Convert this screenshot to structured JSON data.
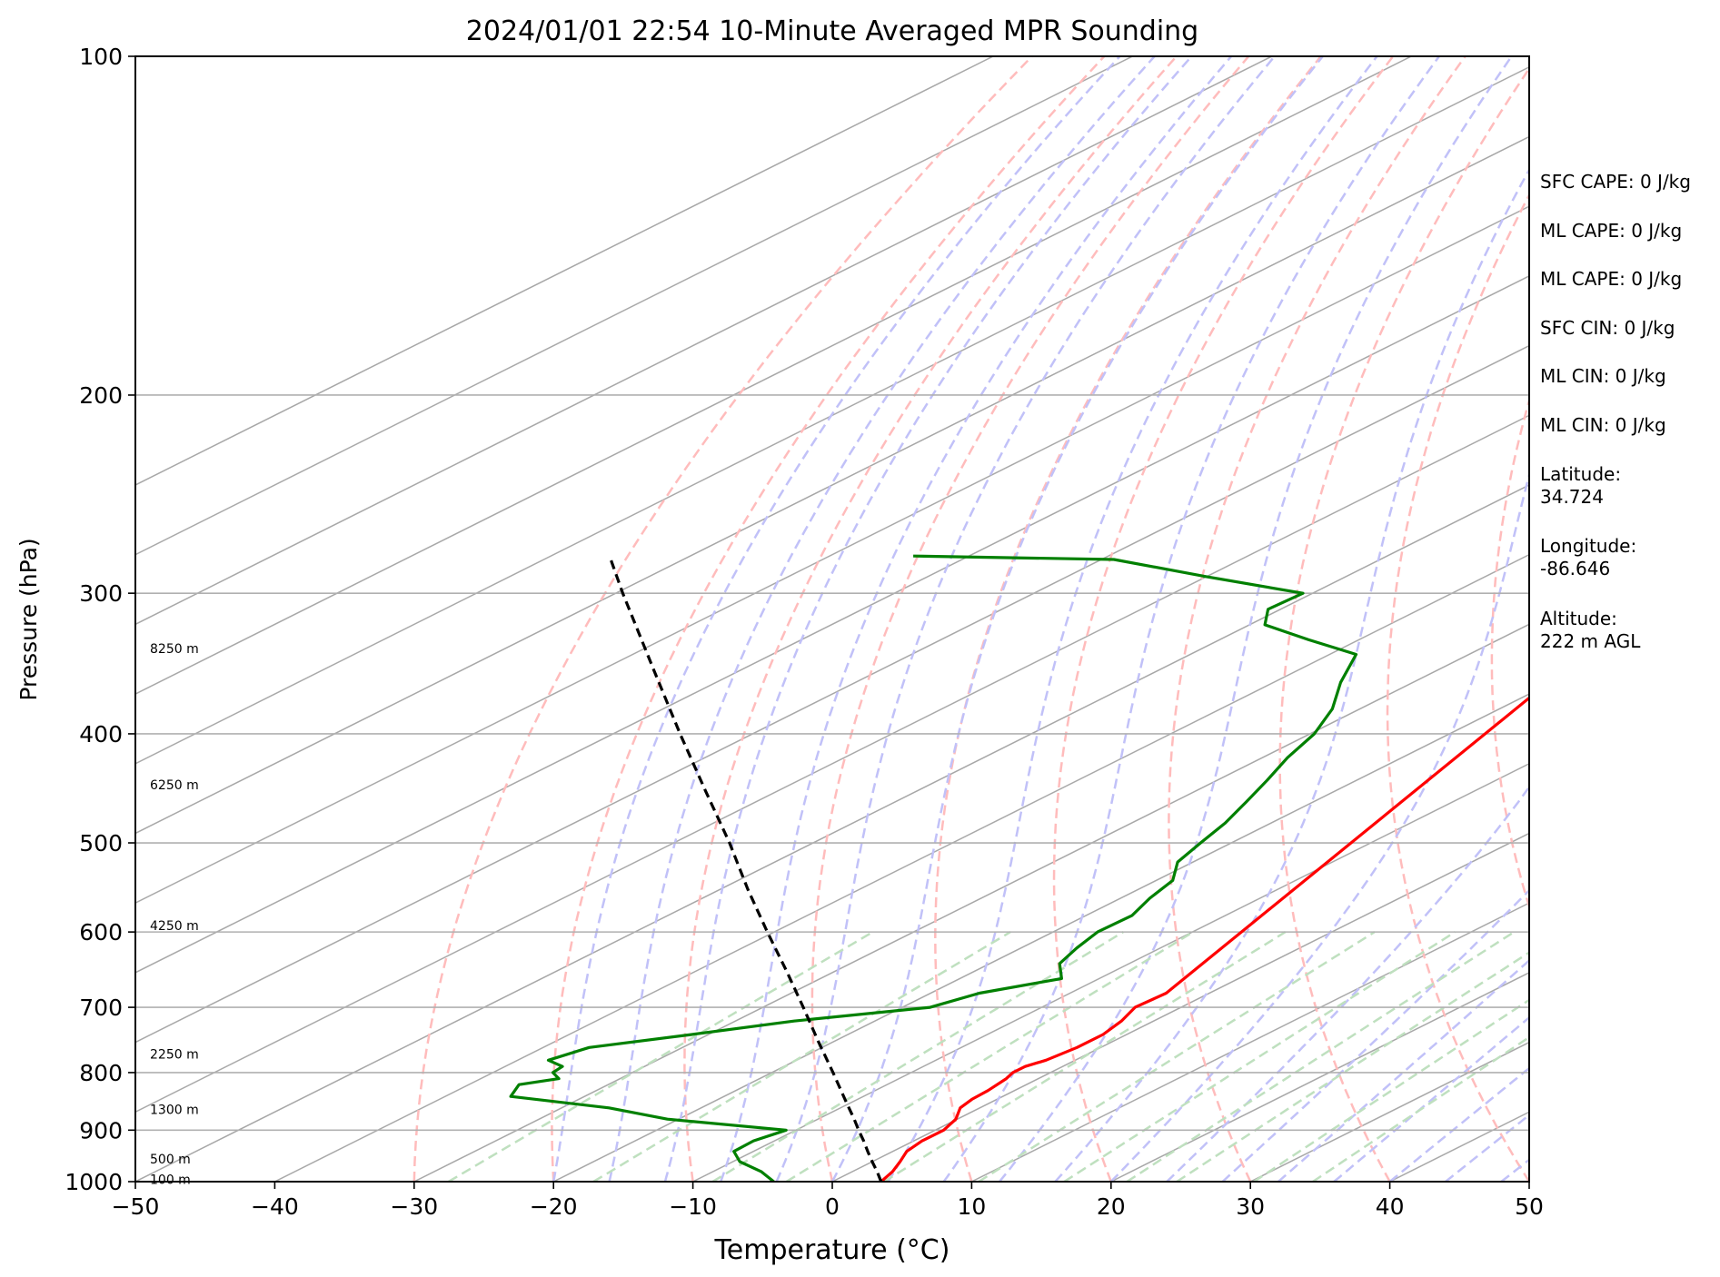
{
  "chart_data": {
    "type": "skew-t log-p sounding",
    "title": "2024/01/01 22:54 10-Minute Averaged MPR Sounding",
    "xlabel": "Temperature (°C)",
    "ylabel": "Pressure (hPa)",
    "xlim": [
      -50,
      50
    ],
    "ylim": [
      1000,
      100
    ],
    "y_scale": "log",
    "grid": true,
    "x_ticks": [
      -50,
      -40,
      -30,
      -20,
      -10,
      0,
      10,
      20,
      30,
      40,
      50
    ],
    "x_tick_labels": [
      "−50",
      "−40",
      "−30",
      "−20",
      "−10",
      "0",
      "10",
      "20",
      "30",
      "40",
      "50"
    ],
    "y_ticks": [
      1000,
      900,
      800,
      700,
      600,
      500,
      400,
      300,
      200,
      100
    ],
    "y_tick_labels": [
      "1000",
      "900",
      "800",
      "700",
      "600",
      "500",
      "400",
      "300",
      "200",
      "100"
    ],
    "height_labels": [
      {
        "pressure": 995,
        "label": "100 m"
      },
      {
        "pressure": 955,
        "label": "500 m"
      },
      {
        "pressure": 863,
        "label": "1300 m"
      },
      {
        "pressure": 770,
        "label": "2250 m"
      },
      {
        "pressure": 592,
        "label": "4250 m"
      },
      {
        "pressure": 444,
        "label": "6250 m"
      },
      {
        "pressure": 336,
        "label": "8250 m"
      }
    ],
    "series": [
      {
        "role": "temperature",
        "color": "#ff0000",
        "pressure": [
          1000,
          980,
          960,
          940,
          920,
          900,
          880,
          860,
          845,
          830,
          810,
          800,
          790,
          780,
          760,
          740,
          720,
          700,
          680,
          660,
          360,
          340,
          320,
          300,
          280,
          260,
          250
        ],
        "values": [
          3.5,
          2.9,
          2.0,
          1.0,
          0.6,
          0.6,
          -0.1,
          -1.4,
          -1.8,
          -1.9,
          -2.3,
          -2.7,
          -2.7,
          -2.1,
          -1.7,
          -1.7,
          -2.3,
          -3.3,
          -3.1,
          -3.9,
          -20.3,
          -21.8,
          -22.6,
          -22.9,
          -24.6,
          -25.4,
          -26.6
        ]
      },
      {
        "role": "dewpoint",
        "color": "#008000",
        "pressure": [
          1000,
          980,
          960,
          940,
          920,
          900,
          880,
          860,
          840,
          820,
          810,
          800,
          790,
          780,
          760,
          740,
          720,
          700,
          680,
          660,
          640,
          620,
          600,
          580,
          560,
          540,
          520,
          500,
          480,
          460,
          440,
          420,
          400,
          380,
          360,
          340,
          330,
          320,
          310,
          300,
          290,
          280,
          278
        ],
        "values": [
          -4.2,
          -6.5,
          -9.5,
          -11.4,
          -11.5,
          -10.7,
          -20.8,
          -26.6,
          -35.3,
          -36.4,
          -34.4,
          -35.7,
          -35.9,
          -37.8,
          -36.7,
          -31.2,
          -25.8,
          -18.0,
          -16.5,
          -12.7,
          -15.0,
          -16.0,
          -16.8,
          -16.7,
          -17.9,
          -18.8,
          -21.1,
          -22.2,
          -23.3,
          -24.8,
          -26.4,
          -28.2,
          -29.7,
          -32.0,
          -35.2,
          -38.1,
          -43.6,
          -48.9,
          -50.9,
          -50.7,
          -60.0,
          -69.1,
          -84.0
        ]
      },
      {
        "role": "surface parcel profile",
        "color": "#000000",
        "dashed": true,
        "pressure": [
          1000,
          980,
          960,
          940,
          920,
          900,
          880,
          850,
          800,
          750,
          700,
          650,
          600,
          550,
          500,
          450,
          400,
          350,
          300,
          280
        ],
        "values": [
          3.5,
          1.8,
          0.0,
          -1.8,
          -3.6,
          -5.5,
          -7.4,
          -10.4,
          -15.6,
          -21.2,
          -27.1,
          -33.5,
          -40.5,
          -48.0,
          -56.0,
          -65.1,
          -75.2,
          -86.5,
          -99.5,
          -105.2
        ]
      }
    ]
  },
  "sidebar": {
    "sfc_cape": "SFC CAPE: 0 J/kg",
    "ml_cape_1": "ML CAPE: 0 J/kg",
    "ml_cape_2": "ML CAPE: 0 J/kg",
    "sfc_cin": "SFC CIN: 0 J/kg",
    "ml_cin_1": "ML CIN: 0 J/kg",
    "ml_cin_2": "ML CIN: 0 J/kg",
    "latitude_label": "Latitude:",
    "latitude_value": "34.724",
    "longitude_label": "Longitude:",
    "longitude_value": "-86.646",
    "altitude_label": "Altitude:",
    "altitude_value": "222 m AGL"
  },
  "colors": {
    "isotherm": "#a8a8a8",
    "dry_adiabat": "#ffbcbc",
    "moist_adiabat": "#c1c1f8",
    "mixing_ratio": "#bfe0bf"
  }
}
